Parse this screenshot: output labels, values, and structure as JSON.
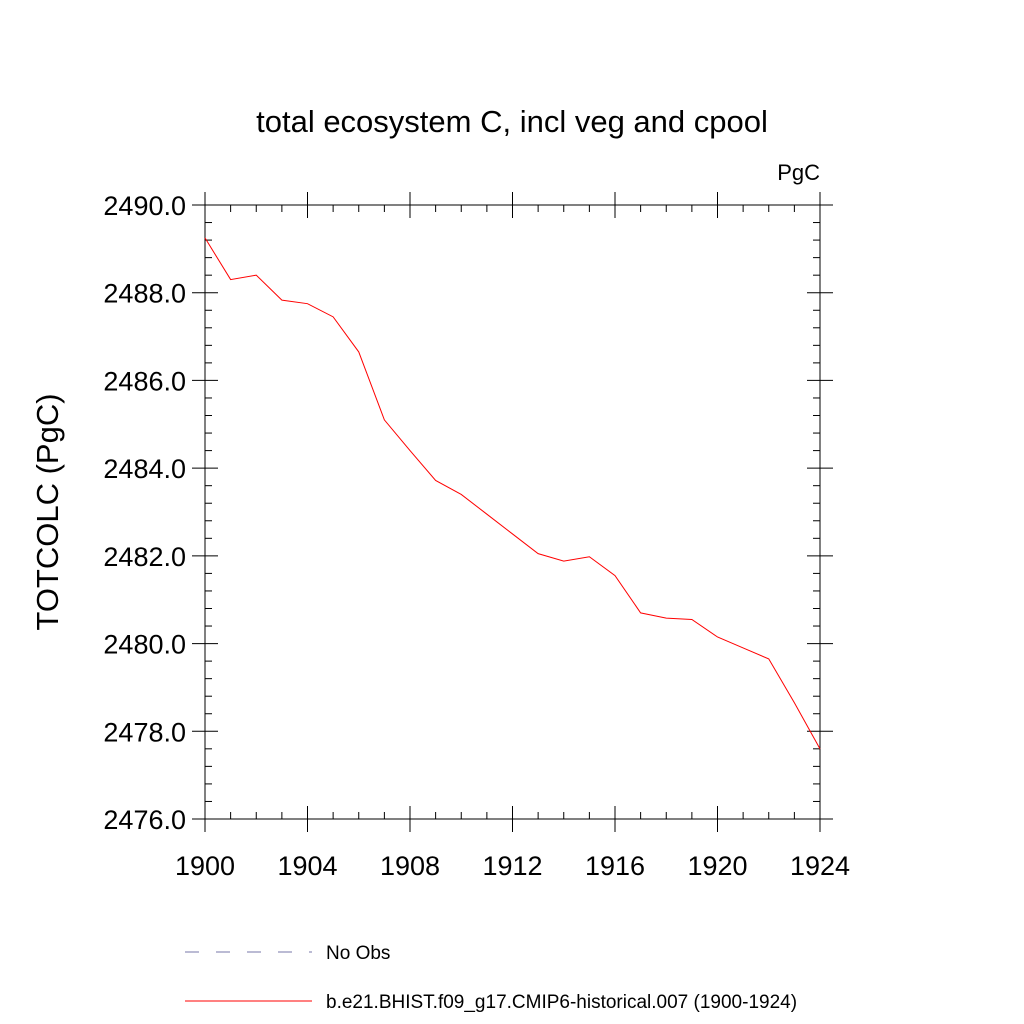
{
  "chart_data": {
    "type": "line",
    "title": "total ecosystem C, incl veg and cpool",
    "units_label": "PgC",
    "xlabel": "",
    "ylabel": "TOTCOLC  (PgC)",
    "xlim": [
      1900,
      1924
    ],
    "ylim": [
      2476.0,
      2490.0
    ],
    "x_ticks": [
      1900,
      1904,
      1908,
      1912,
      1916,
      1920,
      1924
    ],
    "x_tick_labels": [
      "1900",
      "1904",
      "1908",
      "1912",
      "1916",
      "1920",
      "1924"
    ],
    "y_ticks": [
      2476.0,
      2478.0,
      2480.0,
      2482.0,
      2484.0,
      2486.0,
      2488.0,
      2490.0
    ],
    "y_tick_labels": [
      "2476.0",
      "2478.0",
      "2480.0",
      "2482.0",
      "2484.0",
      "2486.0",
      "2488.0",
      "2490.0"
    ],
    "x_minor_step": 1,
    "y_minor_step": 0.4,
    "grid": false,
    "series": [
      {
        "name": "b.e21.BHIST.f09_g17.CMIP6-historical.007 (1900-1924)",
        "color": "#ff0000",
        "style": "solid",
        "x": [
          1900,
          1901,
          1902,
          1903,
          1904,
          1905,
          1906,
          1907,
          1908,
          1909,
          1910,
          1911,
          1912,
          1913,
          1914,
          1915,
          1916,
          1917,
          1918,
          1919,
          1920,
          1921,
          1922,
          1923,
          1924
        ],
        "values": [
          2489.25,
          2488.3,
          2488.4,
          2487.83,
          2487.75,
          2487.45,
          2486.65,
          2485.1,
          2484.4,
          2483.72,
          2483.4,
          2482.95,
          2482.5,
          2482.05,
          2481.88,
          2481.98,
          2481.55,
          2480.7,
          2480.58,
          2480.55,
          2480.15,
          2479.9,
          2479.65,
          2478.65,
          2477.6
        ]
      }
    ],
    "legend": {
      "position": "bottom",
      "entries": [
        {
          "label": "No Obs",
          "color": "#7777aa",
          "style": "dashed"
        },
        {
          "label": "b.e21.BHIST.f09_g17.CMIP6-historical.007 (1900-1924)",
          "color": "#ff0000",
          "style": "solid"
        }
      ]
    }
  }
}
